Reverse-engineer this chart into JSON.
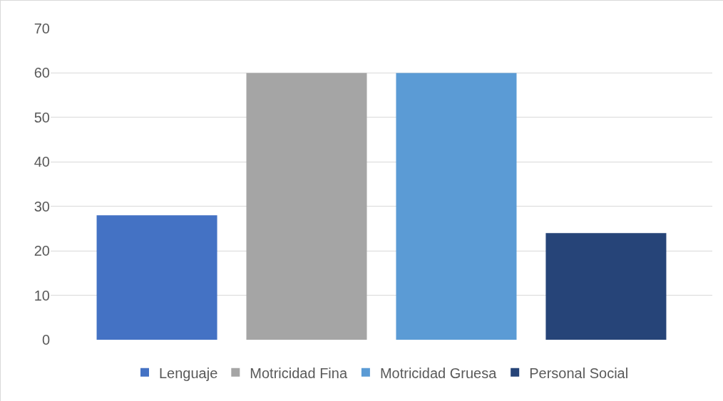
{
  "chart_data": {
    "type": "bar",
    "categories": [
      null
    ],
    "series": [
      {
        "name": "Lenguaje",
        "color": "#4472c4",
        "values": [
          28
        ]
      },
      {
        "name": "Motricidad Fina",
        "color": "#a5a5a5",
        "values": [
          60
        ]
      },
      {
        "name": "Motricidad Gruesa",
        "color": "#5b9bd5",
        "values": [
          60
        ]
      },
      {
        "name": "Personal Social",
        "color": "#264478",
        "values": [
          24
        ]
      }
    ],
    "ylim": [
      0,
      70
    ],
    "yticks": [
      0,
      10,
      20,
      30,
      40,
      50,
      60,
      70
    ],
    "grid": "y",
    "legend": "bottom",
    "tick_labels": "y"
  }
}
